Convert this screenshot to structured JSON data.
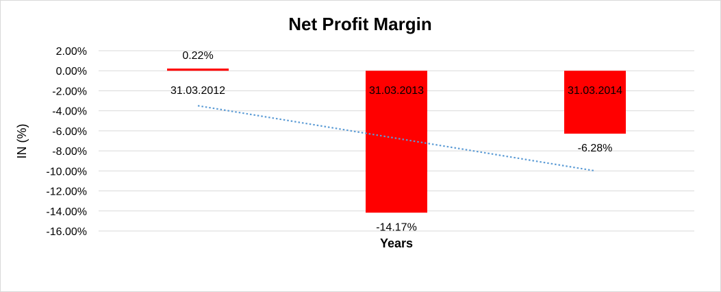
{
  "chart_data": {
    "type": "bar",
    "title": "Net Profit Margin",
    "xlabel": "Years",
    "ylabel": "IN (%)",
    "categories": [
      "31.03.2012",
      "31.03.2013",
      "31.03.2014"
    ],
    "values": [
      0.22,
      -14.17,
      -6.28
    ],
    "data_labels": [
      "0.22%",
      "-14.17%",
      "-6.28%"
    ],
    "ylim": [
      -16,
      2
    ],
    "yticks": [
      2,
      0,
      -2,
      -4,
      -6,
      -8,
      -10,
      -12,
      -14,
      -16
    ],
    "ytick_labels": [
      "2.00%",
      "0.00%",
      "-2.00%",
      "-4.00%",
      "-6.00%",
      "-8.00%",
      "-10.00%",
      "-12.00%",
      "-14.00%",
      "-16.00%"
    ],
    "trendline": "linear",
    "grid": true,
    "legend": "none",
    "colors": {
      "bar": "#ff0000",
      "trendline": "#5b9bd5",
      "grid": "#d9d9d9"
    }
  }
}
